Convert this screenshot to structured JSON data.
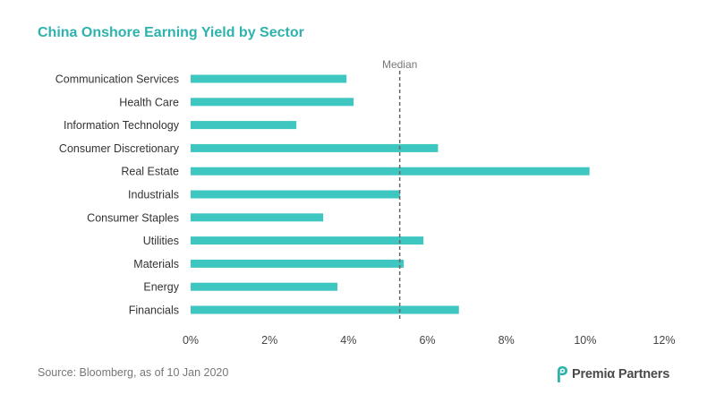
{
  "colors": {
    "title": "#2eb2ad",
    "bar": "#3ec6c1",
    "median_line": "#666666",
    "logo_icon": "#2eb2ad"
  },
  "source": "Source: Bloomberg, as of 10 Jan 2020",
  "logo": {
    "text": "Premiα Partners",
    "icon": "premia-logo-icon"
  },
  "chart_data": {
    "type": "bar",
    "orientation": "horizontal",
    "title": "China Onshore Earning Yield by Sector",
    "xlabel": "",
    "ylabel": "",
    "categories": [
      "Communication Services",
      "Health Care",
      "Information Technology",
      "Consumer Discretionary",
      "Real Estate",
      "Industrials",
      "Consumer Staples",
      "Utilities",
      "Materials",
      "Energy",
      "Financials"
    ],
    "values": [
      3.95,
      4.13,
      2.68,
      6.27,
      10.11,
      5.31,
      3.36,
      5.9,
      5.4,
      3.72,
      6.8
    ],
    "unit": "%",
    "xlim": [
      0,
      12
    ],
    "xtick_values": [
      0,
      2,
      4,
      6,
      8,
      10,
      12
    ],
    "xtick_labels": [
      "0%",
      "2%",
      "4%",
      "6%",
      "8%",
      "10%",
      "12%"
    ],
    "reference_line": {
      "label": "Median",
      "value": 5.3,
      "style": "dashed"
    },
    "grid": false,
    "legend": "none"
  }
}
